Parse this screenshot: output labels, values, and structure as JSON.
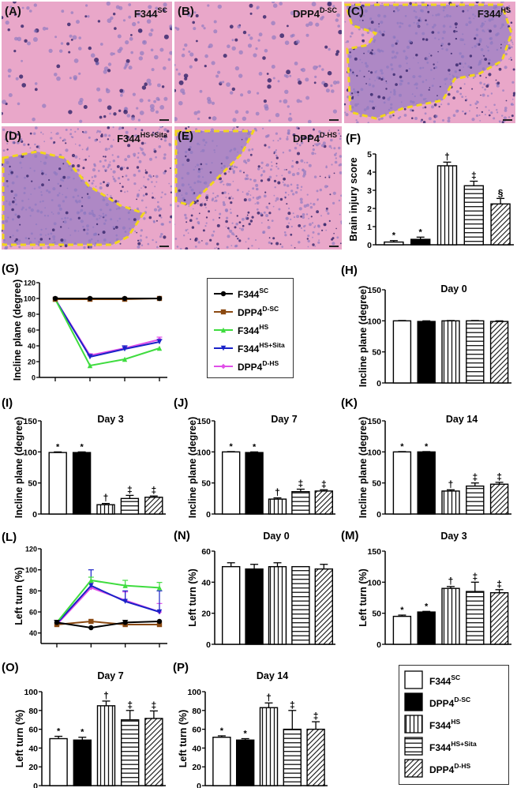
{
  "figure": {
    "panel_letters": [
      "(A)",
      "(B)",
      "(C)",
      "(D)",
      "(E)",
      "(F)",
      "(G)",
      "(H)",
      "(I)",
      "(J)",
      "(K)",
      "(L)",
      "(N)",
      "(M)",
      "(O)",
      "(P)"
    ],
    "histology_panels": [
      {
        "letter": "(A)",
        "group_base": "F344",
        "group_sup": "SC",
        "lesion_outline": false
      },
      {
        "letter": "(B)",
        "group_base": "DPP4",
        "group_sup": "D-SC",
        "lesion_outline": false
      },
      {
        "letter": "(C)",
        "group_base": "F344",
        "group_sup": "HS",
        "lesion_outline": true
      },
      {
        "letter": "(D)",
        "group_base": "F344",
        "group_sup": "HS+Sita",
        "lesion_outline": true
      },
      {
        "letter": "(E)",
        "group_base": "DPP4",
        "group_sup": "D-HS",
        "lesion_outline": true
      }
    ],
    "colors": {
      "he_stain_bg": "#e9a7c9",
      "lesion_stain": "#a382c4",
      "lesion_outline": "#f2d61c",
      "series_F344SC": "#000000",
      "series_DPP4DSC": "#8b4a12",
      "series_F344HS": "#3fdc3f",
      "series_F344HSSita": "#1a22c8",
      "series_DPP4DHS": "#e04fe8"
    }
  },
  "groups": [
    {
      "base": "F344",
      "sup": "SC",
      "fill": "white"
    },
    {
      "base": "DPP4",
      "sup": "D-SC",
      "fill": "black"
    },
    {
      "base": "F344",
      "sup": "HS",
      "fill": "vertical-stripes"
    },
    {
      "base": "F344",
      "sup": "HS+Sita",
      "fill": "horizontal-stripes"
    },
    {
      "base": "DPP4",
      "sup": "D-HS",
      "fill": "diagonal-stripes"
    }
  ],
  "line_legend": [
    {
      "base": "F344",
      "sup": "SC",
      "marker": "circle",
      "color": "#000000"
    },
    {
      "base": "DPP4",
      "sup": "D-SC",
      "marker": "square",
      "color": "#8b4a12"
    },
    {
      "base": "F344",
      "sup": "HS",
      "marker": "triangle-up",
      "color": "#3fdc3f"
    },
    {
      "base": "F344",
      "sup": "HS+Sita",
      "marker": "triangle-down",
      "color": "#1a22c8"
    },
    {
      "base": "DPP4",
      "sup": "D-HS",
      "marker": "diamond",
      "color": "#e04fe8"
    }
  ],
  "chart_data": [
    {
      "id": "F",
      "type": "bar",
      "letter": "(F)",
      "title": "",
      "ylabel": "Brain injury score",
      "ylim": [
        0,
        5
      ],
      "yticks": [
        0,
        1,
        2,
        3,
        4,
        5
      ],
      "categories": [
        "F344 SC",
        "DPP4 D-SC",
        "F344 HS",
        "F344 HS+Sita",
        "DPP4 D-HS"
      ],
      "values": [
        0.15,
        0.3,
        4.35,
        3.25,
        2.25
      ],
      "errors": [
        0.08,
        0.12,
        0.2,
        0.25,
        0.3
      ],
      "annotations": [
        "*",
        "*",
        "†",
        "‡",
        "§"
      ]
    },
    {
      "id": "G",
      "type": "line",
      "letter": "(G)",
      "title": "",
      "ylabel": "Incline plane (degree)",
      "ylim": [
        0,
        120
      ],
      "yticks": [
        0,
        20,
        40,
        60,
        80,
        100,
        120
      ],
      "x": [
        0,
        3,
        7,
        14
      ],
      "xtick_labels": [
        "",
        "",
        "",
        ""
      ],
      "series": [
        {
          "name": "F344 SC",
          "values": [
            100,
            100,
            100,
            100
          ],
          "errors": [
            1,
            1,
            1,
            1
          ]
        },
        {
          "name": "DPP4 D-SC",
          "values": [
            99,
            99,
            99,
            100
          ],
          "errors": [
            1,
            1,
            1,
            1
          ]
        },
        {
          "name": "F344 HS",
          "values": [
            99,
            15,
            23,
            37
          ],
          "errors": [
            1,
            1,
            1,
            1
          ]
        },
        {
          "name": "F344 HS+Sita",
          "values": [
            99,
            26,
            36,
            45
          ],
          "errors": [
            1,
            3,
            4,
            3
          ]
        },
        {
          "name": "DPP4 D-HS",
          "values": [
            99,
            28,
            37,
            48
          ],
          "errors": [
            1,
            2,
            3,
            3
          ]
        }
      ]
    },
    {
      "id": "H",
      "type": "bar",
      "letter": "(H)",
      "title": "Day 0",
      "ylabel": "Incline plane (degree)",
      "ylim": [
        0,
        150
      ],
      "yticks": [
        0,
        50,
        100,
        150
      ],
      "categories": [
        "F344 SC",
        "DPP4 D-SC",
        "F344 HS",
        "F344 HS+Sita",
        "DPP4 D-HS"
      ],
      "values": [
        100,
        99,
        100,
        100,
        99
      ],
      "errors": [
        0.5,
        1,
        0.5,
        0.5,
        1
      ],
      "annotations": [
        "",
        "",
        "",
        "",
        ""
      ]
    },
    {
      "id": "I",
      "type": "bar",
      "letter": "(I)",
      "title": "Day 3",
      "ylabel": "Incline plane (degree)",
      "ylim": [
        0,
        150
      ],
      "yticks": [
        0,
        50,
        100,
        150
      ],
      "categories": [
        "F344 SC",
        "DPP4 D-SC",
        "F344 HS",
        "F344 HS+Sita",
        "DPP4 D-HS"
      ],
      "values": [
        99,
        99,
        15,
        25,
        27
      ],
      "errors": [
        1,
        1,
        2,
        5,
        2
      ],
      "annotations": [
        "*",
        "*",
        "†",
        "‡",
        "‡"
      ]
    },
    {
      "id": "J",
      "type": "bar",
      "letter": "(J)",
      "title": "Day 7",
      "ylabel": "Incline plane (degree)",
      "ylim": [
        0,
        150
      ],
      "yticks": [
        0,
        50,
        100,
        150
      ],
      "categories": [
        "F344 SC",
        "DPP4 D-SC",
        "F344 HS",
        "F344 HS+Sita",
        "DPP4 D-HS"
      ],
      "values": [
        100,
        99,
        24,
        36,
        37
      ],
      "errors": [
        0.5,
        1,
        2,
        4,
        2
      ],
      "annotations": [
        "*",
        "*",
        "†",
        "‡",
        "‡"
      ]
    },
    {
      "id": "K",
      "type": "bar",
      "letter": "(K)",
      "title": "Day 14",
      "ylabel": "Incline plane (degree)",
      "ylim": [
        0,
        150
      ],
      "yticks": [
        0,
        50,
        100,
        150
      ],
      "categories": [
        "F344 SC",
        "DPP4 D-SC",
        "F344 HS",
        "F344 HS+Sita",
        "DPP4 D-HS"
      ],
      "values": [
        100,
        100,
        37,
        45,
        48
      ],
      "errors": [
        0.5,
        0.5,
        2,
        5,
        3
      ],
      "annotations": [
        "*",
        "*",
        "†",
        "‡",
        "‡"
      ]
    },
    {
      "id": "L",
      "type": "line",
      "letter": "(L)",
      "title": "",
      "ylabel": "Left turn (%)",
      "ylim": [
        30,
        120
      ],
      "yticks": [
        40,
        60,
        80,
        100,
        120
      ],
      "x": [
        0,
        3,
        7,
        14
      ],
      "xtick_labels": [
        "",
        "",
        "",
        ""
      ],
      "series": [
        {
          "name": "F344 SC",
          "values": [
            50,
            45,
            50,
            51
          ],
          "errors": [
            2,
            1,
            2,
            1
          ]
        },
        {
          "name": "DPP4 D-SC",
          "values": [
            48,
            51,
            48,
            48
          ],
          "errors": [
            1,
            1,
            1,
            1
          ]
        },
        {
          "name": "F344 HS",
          "values": [
            50,
            90,
            85,
            83
          ],
          "errors": [
            1,
            3,
            5,
            5
          ]
        },
        {
          "name": "F344 HS+Sita",
          "values": [
            49,
            85,
            70,
            60
          ],
          "errors": [
            1,
            15,
            10,
            20
          ]
        },
        {
          "name": "DPP4 D-HS",
          "values": [
            48,
            83,
            71,
            60
          ],
          "errors": [
            1,
            5,
            8,
            8
          ]
        }
      ]
    },
    {
      "id": "N",
      "type": "bar",
      "letter": "(N)",
      "title": "Day 0",
      "ylabel": "Left turn (%)",
      "ylim": [
        0,
        60
      ],
      "yticks": [
        0,
        20,
        40,
        60
      ],
      "categories": [
        "F344 SC",
        "DPP4 D-SC",
        "F344 HS",
        "F344 HS+Sita",
        "DPP4 D-HS"
      ],
      "values": [
        50,
        48.5,
        50,
        50,
        48.5
      ],
      "errors": [
        2.5,
        3,
        2.5,
        0,
        3
      ],
      "annotations": [
        "",
        "",
        "",
        "",
        ""
      ]
    },
    {
      "id": "M",
      "type": "bar",
      "letter": "(M)",
      "title": "Day 3",
      "ylabel": "Left turn (%)",
      "ylim": [
        0,
        150
      ],
      "yticks": [
        0,
        50,
        100,
        150
      ],
      "categories": [
        "F344 SC",
        "DPP4 D-SC",
        "F344 HS",
        "F344 HS+Sita",
        "DPP4 D-HS"
      ],
      "values": [
        45,
        52,
        90,
        85,
        83
      ],
      "errors": [
        2,
        1,
        3,
        15,
        5
      ],
      "annotations": [
        "*",
        "*",
        "†",
        "‡",
        "‡"
      ]
    },
    {
      "id": "O",
      "type": "bar",
      "letter": "(O)",
      "title": "Day 7",
      "ylabel": "Left turn (%)",
      "ylim": [
        0,
        100
      ],
      "yticks": [
        0,
        20,
        40,
        60,
        80,
        100
      ],
      "categories": [
        "F344 SC",
        "DPP4 D-SC",
        "F344 HS",
        "F344 HS+Sita",
        "DPP4 D-HS"
      ],
      "values": [
        50,
        48.5,
        85,
        70,
        71.5
      ],
      "errors": [
        2.5,
        3,
        5,
        10,
        8
      ],
      "annotations": [
        "*",
        "*",
        "†",
        "‡",
        "‡"
      ]
    },
    {
      "id": "P",
      "type": "bar",
      "letter": "(P)",
      "title": "Day 14",
      "ylabel": "Left turn (%)",
      "ylim": [
        0,
        100
      ],
      "yticks": [
        0,
        20,
        40,
        60,
        80,
        100
      ],
      "categories": [
        "F344 SC",
        "DPP4 D-SC",
        "F344 HS",
        "F344 HS+Sita",
        "DPP4 D-HS"
      ],
      "values": [
        51.5,
        48.5,
        83,
        60,
        60
      ],
      "errors": [
        1.5,
        1.5,
        5,
        20,
        8
      ],
      "annotations": [
        "*",
        "*",
        "†",
        "‡",
        "‡"
      ]
    }
  ]
}
